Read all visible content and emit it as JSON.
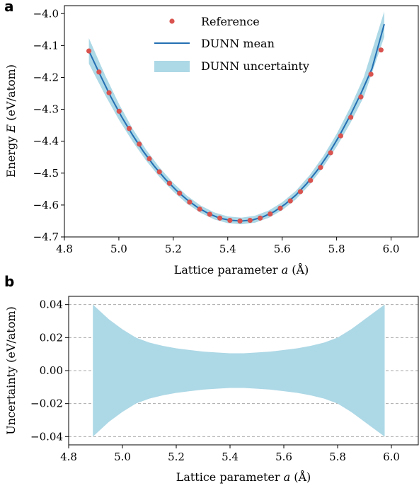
{
  "chart_data": [
    {
      "panel_label": "a",
      "type": "line",
      "xlabel": "Lattice parameter",
      "xlabel_symbol": "a",
      "xlabel_unit": "(Å)",
      "ylabel": "Energy",
      "ylabel_symbol": "E",
      "ylabel_unit": "(eV/atom)",
      "xlim": [
        4.8,
        6.1
      ],
      "ylim": [
        -4.7,
        -3.975
      ],
      "xticks": [
        4.8,
        5.0,
        5.2,
        5.4,
        5.6,
        5.8,
        6.0
      ],
      "yticks": [
        -4.7,
        -4.6,
        -4.5,
        -4.4,
        -4.3,
        -4.2,
        -4.1,
        -4.0
      ],
      "xtick_labels": [
        "4.8",
        "5.0",
        "5.2",
        "5.4",
        "5.6",
        "5.8",
        "6.0"
      ],
      "ytick_labels": [
        "−4.7",
        "−4.6",
        "−4.5",
        "−4.4",
        "−4.3",
        "−4.2",
        "−4.1",
        "−4.0"
      ],
      "legend_position": "top-center",
      "colors": {
        "reference": "#d9534f",
        "mean": "#2470b3",
        "band": "#add8e6"
      },
      "series": [
        {
          "name": "Reference",
          "kind": "scatter",
          "x": [
            4.89,
            4.927,
            4.964,
            5.001,
            5.038,
            5.075,
            5.112,
            5.149,
            5.186,
            5.223,
            5.26,
            5.297,
            5.334,
            5.371,
            5.408,
            5.445,
            5.482,
            5.519,
            5.556,
            5.593,
            5.63,
            5.667,
            5.704,
            5.741,
            5.778,
            5.815,
            5.852,
            5.889,
            5.926,
            5.963
          ],
          "y": [
            -4.117,
            -4.183,
            -4.248,
            -4.306,
            -4.36,
            -4.409,
            -4.455,
            -4.496,
            -4.532,
            -4.563,
            -4.591,
            -4.613,
            -4.629,
            -4.641,
            -4.648,
            -4.65,
            -4.648,
            -4.641,
            -4.628,
            -4.61,
            -4.587,
            -4.558,
            -4.523,
            -4.482,
            -4.436,
            -4.383,
            -4.325,
            -4.261,
            -4.19,
            -4.114
          ]
        },
        {
          "name": "DUNN mean",
          "kind": "line",
          "x": [
            4.89,
            4.93,
            4.97,
            5.01,
            5.05,
            5.09,
            5.13,
            5.17,
            5.21,
            5.25,
            5.29,
            5.33,
            5.37,
            5.41,
            5.45,
            5.49,
            5.53,
            5.57,
            5.61,
            5.65,
            5.69,
            5.73,
            5.77,
            5.81,
            5.85,
            5.89,
            5.93,
            5.975
          ],
          "y": [
            -4.117,
            -4.19,
            -4.26,
            -4.323,
            -4.38,
            -4.432,
            -4.478,
            -4.518,
            -4.553,
            -4.583,
            -4.608,
            -4.627,
            -4.641,
            -4.648,
            -4.65,
            -4.647,
            -4.637,
            -4.621,
            -4.598,
            -4.569,
            -4.533,
            -4.49,
            -4.44,
            -4.383,
            -4.319,
            -4.249,
            -4.172,
            -4.033
          ]
        },
        {
          "name": "DUNN uncertainty",
          "kind": "band",
          "x": [
            4.89,
            4.95,
            5.0,
            5.05,
            5.1,
            5.15,
            5.2,
            5.25,
            5.3,
            5.35,
            5.4,
            5.45,
            5.5,
            5.55,
            5.6,
            5.65,
            5.7,
            5.75,
            5.8,
            5.85,
            5.9,
            5.975
          ],
          "half_width": [
            0.04,
            0.031,
            0.025,
            0.02,
            0.017,
            0.015,
            0.0135,
            0.0125,
            0.0115,
            0.011,
            0.0105,
            0.0105,
            0.011,
            0.0115,
            0.0125,
            0.0135,
            0.015,
            0.017,
            0.02,
            0.025,
            0.031,
            0.04
          ]
        }
      ]
    },
    {
      "panel_label": "b",
      "type": "area",
      "xlabel": "Lattice parameter",
      "xlabel_symbol": "a",
      "xlabel_unit": "(Å)",
      "ylabel": "Uncertainty (eV/atom)",
      "xlim": [
        4.8,
        6.1
      ],
      "ylim": [
        -0.045,
        0.045
      ],
      "xticks": [
        4.8,
        5.0,
        5.2,
        5.4,
        5.6,
        5.8,
        6.0
      ],
      "yticks": [
        -0.04,
        -0.02,
        0.0,
        0.02,
        0.04
      ],
      "xtick_labels": [
        "4.8",
        "5.0",
        "5.2",
        "5.4",
        "5.6",
        "5.8",
        "6.0"
      ],
      "ytick_labels": [
        "−0.04",
        "−0.02",
        "0.00",
        "0.02",
        "0.04"
      ],
      "grid": "horizontal dashed",
      "colors": {
        "band": "#add8e6",
        "grid": "#aaaaaa"
      },
      "series": [
        {
          "kind": "band",
          "x": [
            4.89,
            4.95,
            5.0,
            5.05,
            5.1,
            5.15,
            5.2,
            5.25,
            5.3,
            5.35,
            5.4,
            5.45,
            5.5,
            5.55,
            5.6,
            5.65,
            5.7,
            5.75,
            5.8,
            5.85,
            5.9,
            5.975
          ],
          "upper": [
            0.04,
            0.031,
            0.025,
            0.02,
            0.017,
            0.015,
            0.0135,
            0.0125,
            0.0115,
            0.011,
            0.0105,
            0.0105,
            0.011,
            0.0115,
            0.0125,
            0.0135,
            0.015,
            0.017,
            0.02,
            0.025,
            0.031,
            0.04
          ],
          "lower": [
            -0.04,
            -0.031,
            -0.025,
            -0.02,
            -0.017,
            -0.015,
            -0.0135,
            -0.0125,
            -0.0115,
            -0.011,
            -0.0105,
            -0.0105,
            -0.011,
            -0.0115,
            -0.0125,
            -0.0135,
            -0.015,
            -0.017,
            -0.02,
            -0.025,
            -0.031,
            -0.04
          ]
        }
      ]
    }
  ]
}
